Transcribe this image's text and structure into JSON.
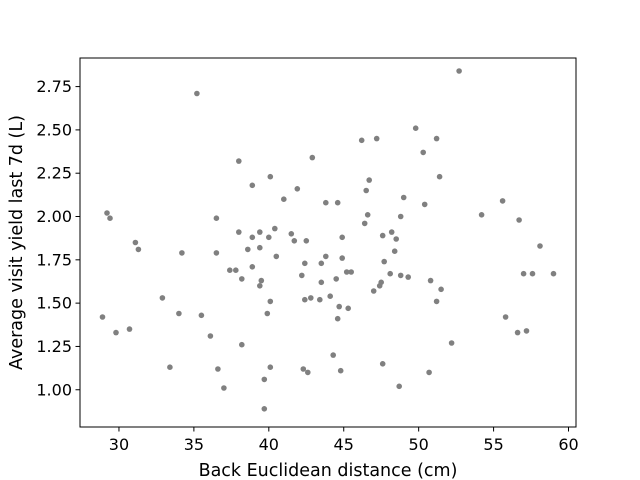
{
  "chart_data": {
    "type": "scatter",
    "title": "",
    "xlabel": "Back Euclidean distance (cm)",
    "ylabel": "Average visit yield last 7d (L)",
    "xlim": [
      27.4,
      60.5
    ],
    "ylim": [
      0.785,
      2.915
    ],
    "xticks": [
      30,
      35,
      40,
      45,
      50,
      55,
      60
    ],
    "yticks": [
      1.0,
      1.25,
      1.5,
      1.75,
      2.0,
      2.25,
      2.5,
      2.75
    ],
    "ytick_labels": [
      "1.00",
      "1.25",
      "1.50",
      "1.75",
      "2.00",
      "2.25",
      "2.50",
      "2.75"
    ],
    "grid": false,
    "legend": "none",
    "marker_color": "#808080",
    "points": [
      {
        "x": 28.9,
        "y": 1.42
      },
      {
        "x": 29.2,
        "y": 2.02
      },
      {
        "x": 29.4,
        "y": 1.99
      },
      {
        "x": 29.8,
        "y": 1.33
      },
      {
        "x": 30.7,
        "y": 1.35
      },
      {
        "x": 31.1,
        "y": 1.85
      },
      {
        "x": 31.3,
        "y": 1.81
      },
      {
        "x": 32.9,
        "y": 1.53
      },
      {
        "x": 33.4,
        "y": 1.13
      },
      {
        "x": 34.0,
        "y": 1.44
      },
      {
        "x": 34.2,
        "y": 1.79
      },
      {
        "x": 35.2,
        "y": 2.71
      },
      {
        "x": 35.5,
        "y": 1.43
      },
      {
        "x": 36.1,
        "y": 1.31
      },
      {
        "x": 36.5,
        "y": 1.99
      },
      {
        "x": 36.5,
        "y": 1.79
      },
      {
        "x": 36.6,
        "y": 1.12
      },
      {
        "x": 37.0,
        "y": 1.01
      },
      {
        "x": 37.4,
        "y": 1.69
      },
      {
        "x": 37.8,
        "y": 1.69
      },
      {
        "x": 38.0,
        "y": 1.91
      },
      {
        "x": 38.0,
        "y": 2.32
      },
      {
        "x": 38.2,
        "y": 1.64
      },
      {
        "x": 38.2,
        "y": 1.26
      },
      {
        "x": 38.6,
        "y": 1.81
      },
      {
        "x": 38.9,
        "y": 1.71
      },
      {
        "x": 38.9,
        "y": 1.88
      },
      {
        "x": 38.9,
        "y": 2.18
      },
      {
        "x": 39.4,
        "y": 1.91
      },
      {
        "x": 39.4,
        "y": 1.6
      },
      {
        "x": 39.4,
        "y": 1.82
      },
      {
        "x": 39.5,
        "y": 1.63
      },
      {
        "x": 39.7,
        "y": 0.89
      },
      {
        "x": 39.7,
        "y": 1.06
      },
      {
        "x": 39.9,
        "y": 1.44
      },
      {
        "x": 40.0,
        "y": 1.88
      },
      {
        "x": 40.1,
        "y": 1.13
      },
      {
        "x": 40.1,
        "y": 1.51
      },
      {
        "x": 40.1,
        "y": 2.23
      },
      {
        "x": 40.4,
        "y": 1.93
      },
      {
        "x": 40.5,
        "y": 1.77
      },
      {
        "x": 41.0,
        "y": 2.1
      },
      {
        "x": 41.5,
        "y": 1.9
      },
      {
        "x": 41.7,
        "y": 1.86
      },
      {
        "x": 41.9,
        "y": 2.16
      },
      {
        "x": 42.2,
        "y": 1.66
      },
      {
        "x": 42.3,
        "y": 1.12
      },
      {
        "x": 42.4,
        "y": 1.52
      },
      {
        "x": 42.4,
        "y": 1.73
      },
      {
        "x": 42.5,
        "y": 1.86
      },
      {
        "x": 42.6,
        "y": 1.1
      },
      {
        "x": 42.8,
        "y": 1.53
      },
      {
        "x": 42.9,
        "y": 2.34
      },
      {
        "x": 43.4,
        "y": 1.52
      },
      {
        "x": 43.5,
        "y": 1.62
      },
      {
        "x": 43.5,
        "y": 1.73
      },
      {
        "x": 43.8,
        "y": 1.77
      },
      {
        "x": 43.8,
        "y": 2.08
      },
      {
        "x": 44.1,
        "y": 1.54
      },
      {
        "x": 44.3,
        "y": 1.2
      },
      {
        "x": 44.5,
        "y": 1.64
      },
      {
        "x": 44.6,
        "y": 2.08
      },
      {
        "x": 44.6,
        "y": 1.41
      },
      {
        "x": 44.7,
        "y": 1.48
      },
      {
        "x": 44.8,
        "y": 1.11
      },
      {
        "x": 44.9,
        "y": 1.76
      },
      {
        "x": 44.9,
        "y": 1.88
      },
      {
        "x": 45.2,
        "y": 1.68
      },
      {
        "x": 45.3,
        "y": 1.47
      },
      {
        "x": 45.5,
        "y": 1.68
      },
      {
        "x": 46.2,
        "y": 2.44
      },
      {
        "x": 46.4,
        "y": 1.96
      },
      {
        "x": 46.5,
        "y": 2.15
      },
      {
        "x": 46.6,
        "y": 2.01
      },
      {
        "x": 46.7,
        "y": 2.21
      },
      {
        "x": 47.0,
        "y": 1.57
      },
      {
        "x": 47.2,
        "y": 2.45
      },
      {
        "x": 47.4,
        "y": 1.6
      },
      {
        "x": 47.5,
        "y": 1.62
      },
      {
        "x": 47.6,
        "y": 1.89
      },
      {
        "x": 47.6,
        "y": 1.15
      },
      {
        "x": 47.7,
        "y": 1.74
      },
      {
        "x": 48.1,
        "y": 1.67
      },
      {
        "x": 48.2,
        "y": 1.91
      },
      {
        "x": 48.4,
        "y": 1.8
      },
      {
        "x": 48.5,
        "y": 1.87
      },
      {
        "x": 48.7,
        "y": 1.02
      },
      {
        "x": 48.8,
        "y": 1.66
      },
      {
        "x": 48.8,
        "y": 2.0
      },
      {
        "x": 49.0,
        "y": 2.11
      },
      {
        "x": 49.3,
        "y": 1.65
      },
      {
        "x": 49.8,
        "y": 2.51
      },
      {
        "x": 50.3,
        "y": 2.37
      },
      {
        "x": 50.4,
        "y": 2.07
      },
      {
        "x": 50.7,
        "y": 1.1
      },
      {
        "x": 50.8,
        "y": 1.63
      },
      {
        "x": 51.2,
        "y": 2.45
      },
      {
        "x": 51.2,
        "y": 1.51
      },
      {
        "x": 51.4,
        "y": 2.23
      },
      {
        "x": 51.5,
        "y": 1.58
      },
      {
        "x": 52.2,
        "y": 1.27
      },
      {
        "x": 52.7,
        "y": 2.84
      },
      {
        "x": 54.2,
        "y": 2.01
      },
      {
        "x": 55.6,
        "y": 2.09
      },
      {
        "x": 55.8,
        "y": 1.42
      },
      {
        "x": 56.6,
        "y": 1.33
      },
      {
        "x": 56.7,
        "y": 1.98
      },
      {
        "x": 57.0,
        "y": 1.67
      },
      {
        "x": 57.2,
        "y": 1.34
      },
      {
        "x": 57.6,
        "y": 1.67
      },
      {
        "x": 58.1,
        "y": 1.83
      },
      {
        "x": 59.0,
        "y": 1.67
      }
    ]
  }
}
